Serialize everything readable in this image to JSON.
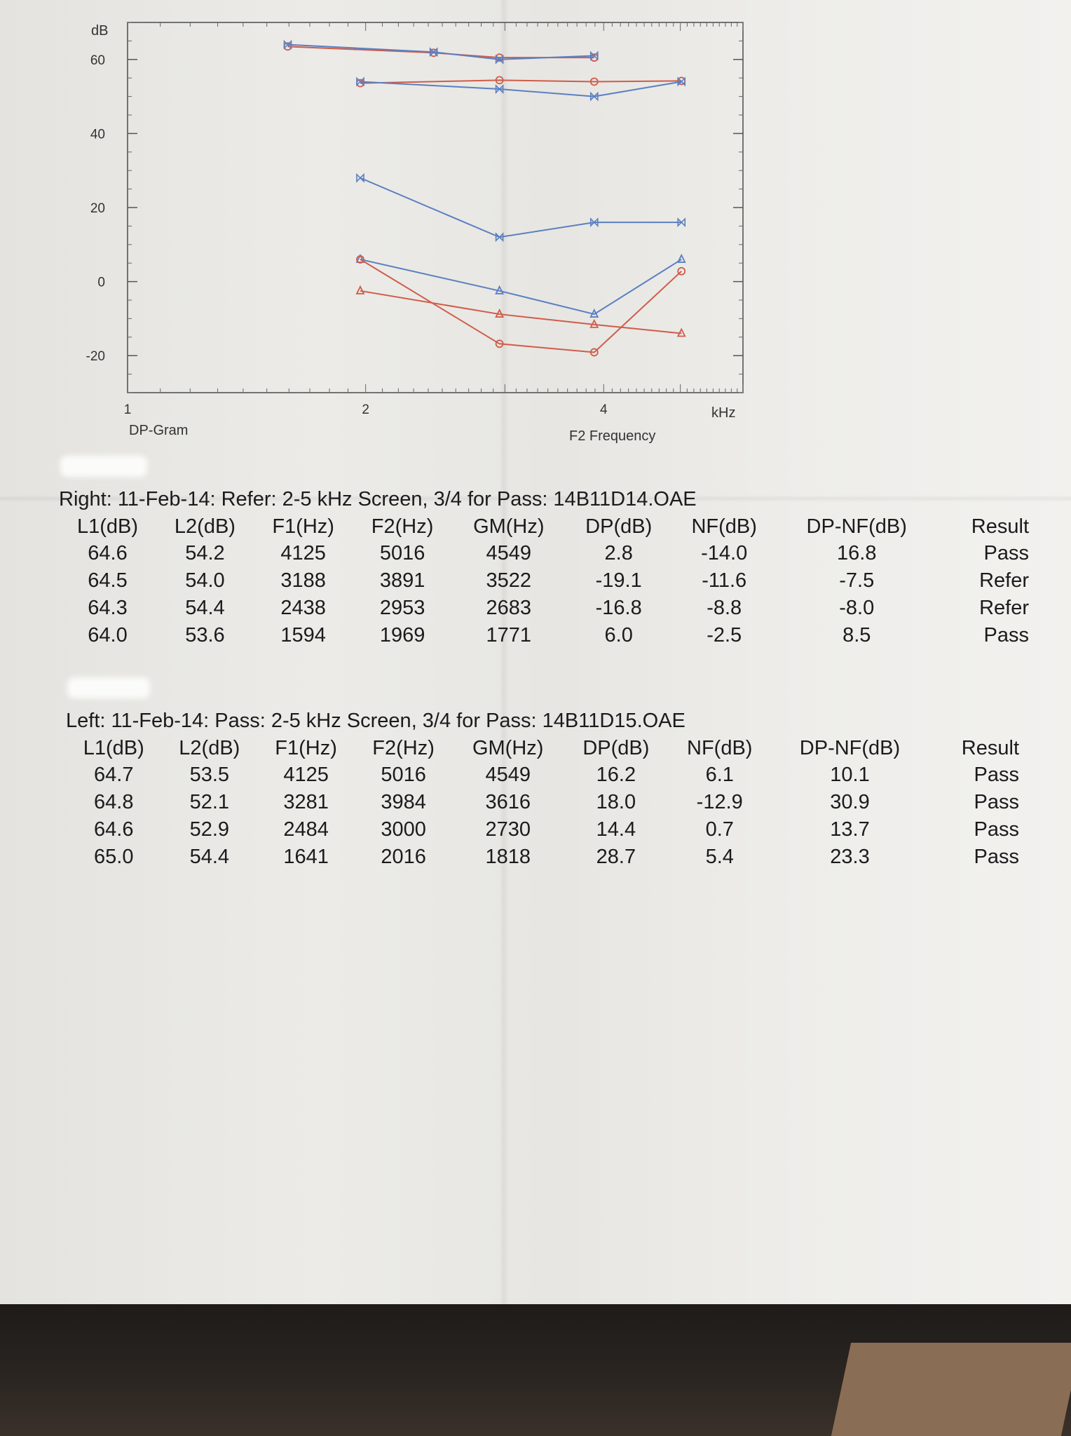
{
  "chart_data": {
    "type": "line",
    "xlabel": "F2 Frequency",
    "x_unit": "kHz",
    "ylabel": "dB",
    "caption": "DP-Gram",
    "x_scale": "log",
    "xlim": [
      1,
      6
    ],
    "ylim": [
      -30,
      70
    ],
    "x_ticks": [
      1,
      2,
      4
    ],
    "y_ticks": [
      60,
      40,
      20,
      0,
      -20
    ],
    "series": [
      {
        "color": "#cf5c4a",
        "marker": "circle",
        "x": [
          1.594,
          2.438,
          2.953,
          3.891
        ],
        "y": [
          63.5,
          61.8,
          60.5,
          60.5
        ]
      },
      {
        "color": "#5b7fc2",
        "marker": "bowtie",
        "x": [
          1.594,
          2.438,
          2.953,
          3.891
        ],
        "y": [
          64.0,
          62.0,
          60.0,
          61.0
        ]
      },
      {
        "color": "#cf5c4a",
        "marker": "circle",
        "x": [
          1.969,
          2.953,
          3.891,
          5.016
        ],
        "y": [
          53.6,
          54.4,
          54.0,
          54.2
        ]
      },
      {
        "color": "#5b7fc2",
        "marker": "bowtie",
        "x": [
          1.969,
          2.953,
          3.891,
          5.016
        ],
        "y": [
          54.0,
          52.0,
          50.0,
          54.0
        ]
      },
      {
        "color": "#5b7fc2",
        "marker": "bowtie",
        "x": [
          1.969,
          2.953,
          3.891,
          5.016
        ],
        "y": [
          28.0,
          12.0,
          16.0,
          16.0
        ]
      },
      {
        "color": "#5b7fc2",
        "marker": "triangle",
        "x": [
          1.969,
          2.953,
          3.891,
          5.016
        ],
        "y": [
          6.0,
          -2.5,
          -8.8,
          6.0
        ]
      },
      {
        "color": "#cf5c4a",
        "marker": "circle",
        "x": [
          1.969,
          2.953,
          3.891,
          5.016
        ],
        "y": [
          6.0,
          -16.8,
          -19.1,
          2.8
        ]
      },
      {
        "color": "#cf5c4a",
        "marker": "triangle",
        "x": [
          1.969,
          2.953,
          3.891,
          5.016
        ],
        "y": [
          -2.5,
          -8.8,
          -11.6,
          -14.0
        ]
      }
    ]
  },
  "right": {
    "title": "Right: 11-Feb-14: Refer: 2-5 kHz Screen, 3/4 for Pass: 14B11D14.OAE",
    "headers": [
      "L1(dB)",
      "L2(dB)",
      "F1(Hz)",
      "F2(Hz)",
      "GM(Hz)",
      "DP(dB)",
      "NF(dB)",
      "DP-NF(dB)",
      "Result"
    ],
    "rows": [
      [
        "64.6",
        "54.2",
        "4125",
        "5016",
        "4549",
        "2.8",
        "-14.0",
        "16.8",
        "Pass"
      ],
      [
        "64.5",
        "54.0",
        "3188",
        "3891",
        "3522",
        "-19.1",
        "-11.6",
        "-7.5",
        "Refer"
      ],
      [
        "64.3",
        "54.4",
        "2438",
        "2953",
        "2683",
        "-16.8",
        "-8.8",
        "-8.0",
        "Refer"
      ],
      [
        "64.0",
        "53.6",
        "1594",
        "1969",
        "1771",
        "6.0",
        "-2.5",
        "8.5",
        "Pass"
      ]
    ]
  },
  "left": {
    "title": "Left: 11-Feb-14: Pass: 2-5 kHz Screen, 3/4 for Pass: 14B11D15.OAE",
    "headers": [
      "L1(dB)",
      "L2(dB)",
      "F1(Hz)",
      "F2(Hz)",
      "GM(Hz)",
      "DP(dB)",
      "NF(dB)",
      "DP-NF(dB)",
      "Result"
    ],
    "rows": [
      [
        "64.7",
        "53.5",
        "4125",
        "5016",
        "4549",
        "16.2",
        "6.1",
        "10.1",
        "Pass"
      ],
      [
        "64.8",
        "52.1",
        "3281",
        "3984",
        "3616",
        "18.0",
        "-12.9",
        "30.9",
        "Pass"
      ],
      [
        "64.6",
        "52.9",
        "2484",
        "3000",
        "2730",
        "14.4",
        "0.7",
        "13.7",
        "Pass"
      ],
      [
        "65.0",
        "54.4",
        "1641",
        "2016",
        "1818",
        "28.7",
        "5.4",
        "23.3",
        "Pass"
      ]
    ]
  }
}
